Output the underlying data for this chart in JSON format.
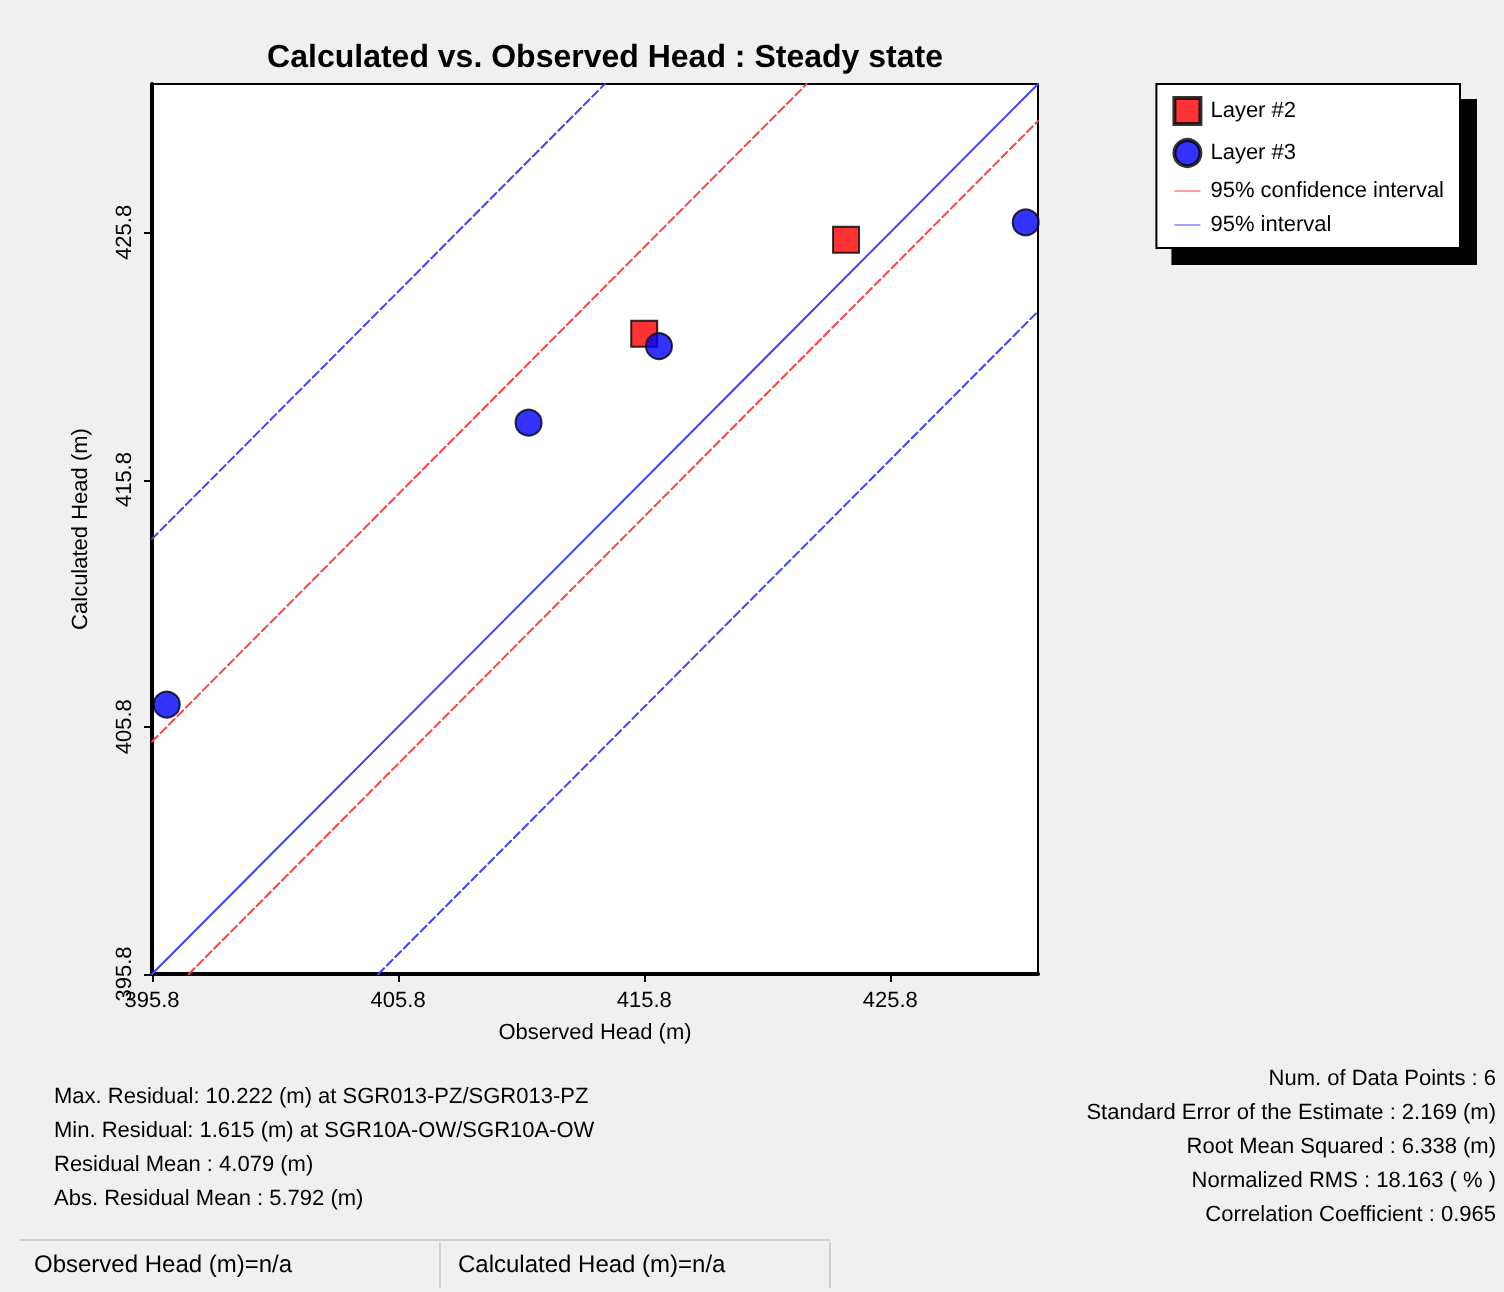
{
  "chart_data": {
    "type": "scatter",
    "title": "Calculated vs. Observed Head : Steady state",
    "xlabel": "Observed Head (m)",
    "ylabel": "Calculated Head (m)",
    "xlim": [
      395.8,
      431.8
    ],
    "ylim": [
      395.8,
      431.8
    ],
    "xticks": [
      395.8,
      405.8,
      415.8,
      425.8
    ],
    "yticks": [
      395.8,
      405.8,
      415.8,
      425.8
    ],
    "grid": false,
    "legend": "top right",
    "series": [
      {
        "name": "Layer #2",
        "color": "#ff0000",
        "marker": "square",
        "x": [
          415.8,
          424.0
        ],
        "values": [
          421.7,
          425.5
        ]
      },
      {
        "name": "Layer #3",
        "color": "#0000ff",
        "marker": "circle",
        "x": [
          396.4,
          411.1,
          416.4,
          431.3
        ],
        "values": [
          406.7,
          418.1,
          421.2,
          426.2
        ]
      },
      {
        "name": "95% confidence interval",
        "type": "line",
        "color": "#ff4040",
        "line_style": "dashed",
        "marker": "none",
        "x": [
          395.8,
          422.4
        ],
        "values": [
          405.2,
          431.8
        ]
      },
      {
        "type": "line",
        "color": "#ff4040",
        "line_style": "dashed",
        "marker": "none",
        "x": [
          397.3,
          431.8
        ],
        "values": [
          395.8,
          430.3
        ]
      },
      {
        "name": "95% interval",
        "type": "line",
        "color": "#4040ff",
        "line_style": "dashed",
        "marker": "none",
        "x": [
          395.8,
          414.2
        ],
        "values": [
          413.4,
          431.8
        ]
      },
      {
        "type": "line",
        "color": "#4040ff",
        "line_style": "dashed",
        "marker": "none",
        "x": [
          405.0,
          431.8
        ],
        "values": [
          395.8,
          422.6
        ]
      },
      {
        "type": "line",
        "color": "#4040ff",
        "line_style": "solid",
        "marker": "none",
        "x": [
          395.8,
          431.8
        ],
        "values": [
          395.8,
          431.8
        ]
      }
    ],
    "annotations": [
      "Max. Residual: 10.222 (m) at SGR013-PZ/SGR013-PZ",
      "Min. Residual: 1.615 (m) at SGR10A-OW/SGR10A-OW",
      "Residual Mean : 4.079 (m)",
      "Abs. Residual Mean : 5.792 (m)",
      "Num. of Data Points : 6",
      "Standard Error of the Estimate : 2.169 (m)",
      "Root Mean Squared : 6.338 (m)",
      "Normalized RMS : 18.163 ( % )",
      "Correlation Coefficient : 0.965",
      "Observed Head (m)=n/a",
      "Calculated Head (m)=n/a"
    ]
  }
}
